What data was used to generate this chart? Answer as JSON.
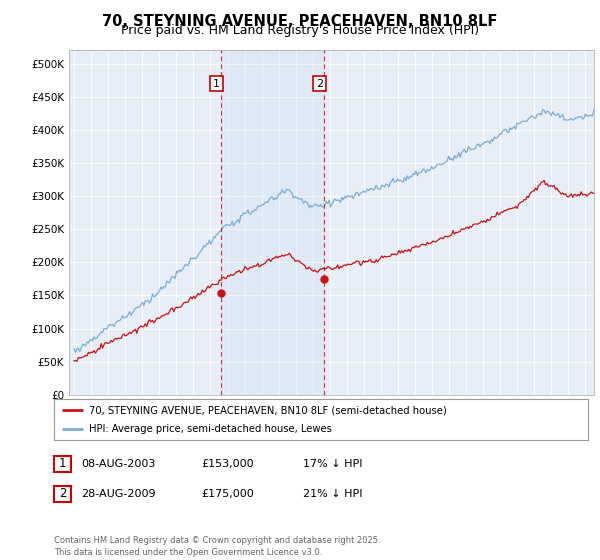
{
  "title": "70, STEYNING AVENUE, PEACEHAVEN, BN10 8LF",
  "subtitle": "Price paid vs. HM Land Registry's House Price Index (HPI)",
  "ylabel_ticks": [
    "£0",
    "£50K",
    "£100K",
    "£150K",
    "£200K",
    "£250K",
    "£300K",
    "£350K",
    "£400K",
    "£450K",
    "£500K"
  ],
  "ytick_values": [
    0,
    50000,
    100000,
    150000,
    200000,
    250000,
    300000,
    350000,
    400000,
    450000,
    500000
  ],
  "ylim": [
    0,
    520000
  ],
  "xlim_start": 1994.7,
  "xlim_end": 2025.5,
  "background_color": "#ffffff",
  "plot_bg_color": "#e8eef8",
  "grid_color": "#ffffff",
  "marker1_x": 2003.6,
  "marker1_price": 153000,
  "marker2_x": 2009.65,
  "marker2_price": 175000,
  "vline_color": "#cc0000",
  "legend_entry1": "70, STEYNING AVENUE, PEACEHAVEN, BN10 8LF (semi-detached house)",
  "legend_entry2": "HPI: Average price, semi-detached house, Lewes",
  "table_row1": [
    "1",
    "08-AUG-2003",
    "£153,000",
    "17% ↓ HPI"
  ],
  "table_row2": [
    "2",
    "28-AUG-2009",
    "£175,000",
    "21% ↓ HPI"
  ],
  "footer": "Contains HM Land Registry data © Crown copyright and database right 2025.\nThis data is licensed under the Open Government Licence v3.0.",
  "line_color_red": "#cc1111",
  "line_color_blue": "#7aaed6",
  "title_fontsize": 10.5,
  "subtitle_fontsize": 9
}
